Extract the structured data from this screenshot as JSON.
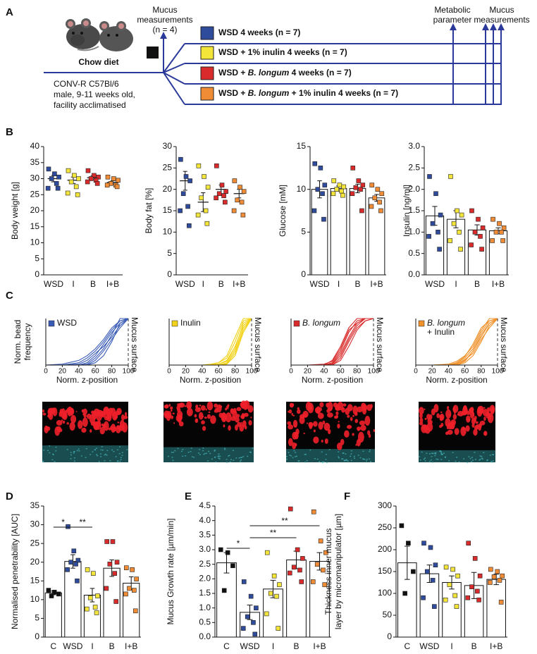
{
  "panel_labels": [
    "A",
    "B",
    "C",
    "D",
    "E",
    "F"
  ],
  "diagram": {
    "start": "Chow diet",
    "mouse_info": [
      "CONV-R C57Bl/6",
      "male, 9-11 weeks old,",
      "facility acclimatised"
    ],
    "early_measure": [
      "Mucus",
      "measurements",
      "(n = 4)"
    ],
    "groups": [
      {
        "color": "#2f4b9c",
        "label": [
          {
            "text": "WSD 4 weeks (n = 7)"
          }
        ]
      },
      {
        "color": "#f3e53a",
        "label": [
          {
            "text": "WSD + 1% inulin 4 weeks (n = 7)"
          }
        ]
      },
      {
        "color": "#d92b2b",
        "label": [
          {
            "text": "WSD + "
          },
          {
            "text": "B. longum",
            "italic": true
          },
          {
            "text": " 4 weeks (n = 7)"
          }
        ]
      },
      {
        "color": "#f08c36",
        "label": [
          {
            "text": "WSD + "
          },
          {
            "text": "B. longum",
            "italic": true
          },
          {
            "text": " + 1% inulin 4 weeks (n = 7)"
          }
        ]
      }
    ],
    "endpoints": [
      [
        "Metabolic",
        "parameter"
      ],
      [
        "Mucus",
        "measurements"
      ]
    ]
  },
  "chart_data": [
    {
      "type": "bar",
      "bars": false,
      "ylabel": "Body weight [g]",
      "categories": [
        "WSD",
        "I",
        "B",
        "I+B"
      ],
      "colors": [
        "#2f4b9c",
        "#f3e53a",
        "#d92b2b",
        "#f08c36"
      ],
      "values": [
        30,
        29.5,
        30.3,
        28.8
      ],
      "errors": [
        1,
        1,
        0.6,
        0.5
      ],
      "points": [
        [
          33,
          31.5,
          30.5,
          30,
          28.5,
          27,
          27
        ],
        [
          32.5,
          31,
          30,
          29,
          27.5,
          25.5,
          25
        ],
        [
          32.5,
          31,
          30.5,
          30,
          29.5,
          29,
          28.5
        ],
        [
          30.5,
          30,
          29.5,
          28.5,
          28,
          28,
          27.5
        ]
      ],
      "ylim": [
        0,
        40
      ],
      "yticks": [
        0,
        5,
        10,
        15,
        20,
        25,
        30,
        35,
        40
      ]
    },
    {
      "type": "bar",
      "bars": false,
      "ylabel": "Body fat [%]",
      "categories": [
        "WSD",
        "I",
        "B",
        "I+B"
      ],
      "colors": [
        "#2f4b9c",
        "#f3e53a",
        "#d92b2b",
        "#f08c36"
      ],
      "values": [
        22,
        17,
        20,
        19
      ],
      "errors": [
        2.2,
        2.2,
        1,
        1
      ],
      "points": [
        [
          27,
          23,
          22,
          19,
          16,
          15,
          11.5
        ],
        [
          25.5,
          23,
          20.5,
          18,
          15,
          14,
          12
        ],
        [
          25.5,
          21,
          19.5,
          19,
          18.5,
          18,
          17
        ],
        [
          22,
          20.5,
          19.5,
          17.5,
          17,
          15,
          14
        ]
      ],
      "ylim": [
        0,
        30
      ],
      "yticks": [
        0,
        5,
        10,
        15,
        20,
        25,
        30
      ]
    },
    {
      "type": "bar",
      "bars": true,
      "ylabel": "Glucose [mM]",
      "categories": [
        "WSD",
        "I",
        "B",
        "I+B"
      ],
      "colors": [
        "#2f4b9c",
        "#f3e53a",
        "#d92b2b",
        "#f08c36"
      ],
      "values": [
        10,
        10.1,
        10.1,
        9
      ],
      "errors": [
        1,
        0.3,
        0.5,
        0.4
      ],
      "points": [
        [
          13,
          12.5,
          10.5,
          10,
          9.5,
          7.5,
          6.5
        ],
        [
          11,
          10.5,
          10.3,
          10,
          9.8,
          9.5,
          9.3
        ],
        [
          12.5,
          11,
          10.5,
          10.2,
          10,
          9.5,
          7.5
        ],
        [
          10.5,
          10,
          9.5,
          9,
          8.5,
          8,
          7.5
        ]
      ],
      "ylim": [
        0,
        15
      ],
      "yticks": [
        0,
        5,
        10,
        15
      ]
    },
    {
      "type": "bar",
      "bars": true,
      "ylabel": "Insulin [ng/ml]",
      "categories": [
        "WSD",
        "I",
        "B",
        "I+B"
      ],
      "colors": [
        "#2f4b9c",
        "#f3e53a",
        "#d92b2b",
        "#f08c36"
      ],
      "values": [
        1.38,
        1.3,
        1.05,
        1.03
      ],
      "errors": [
        0.22,
        0.2,
        0.12,
        0.07
      ],
      "points": [
        [
          2.3,
          1.9,
          1.4,
          1.2,
          1.0,
          0.9,
          0.6
        ],
        [
          2.3,
          1.5,
          1.4,
          1.2,
          1.0,
          0.8,
          0.6
        ],
        [
          1.5,
          1.3,
          1.1,
          1.0,
          0.9,
          0.7,
          0.6
        ],
        [
          1.3,
          1.2,
          1.1,
          1.0,
          1.0,
          0.8,
          0.8
        ]
      ],
      "ylim": [
        0,
        3
      ],
      "yticks": [
        {
          "value": 0,
          "label": "0.0"
        },
        0.5,
        {
          "value": 1,
          "label": "1.0"
        },
        1.5,
        {
          "value": 2,
          "label": "2.0"
        },
        2.5,
        {
          "value": 3,
          "label": "3.0"
        }
      ]
    },
    {
      "type": "line",
      "legend": [
        "WSD"
      ],
      "legend_italic": false,
      "color": "#3a5bb5",
      "ylabel": [
        "Norm. bead",
        "frequency"
      ],
      "xlabel": "Norm. z-position",
      "surface_label": "Mucus surface",
      "x": [
        0,
        20,
        40,
        50,
        60,
        70,
        80,
        90,
        100
      ],
      "series": [
        {
          "values": [
            0,
            0,
            0.05,
            0.15,
            0.3,
            0.5,
            0.75,
            0.95,
            1
          ]
        },
        {
          "values": [
            0,
            0,
            0,
            0.05,
            0.2,
            0.45,
            0.7,
            0.9,
            1
          ]
        },
        {
          "values": [
            0,
            0,
            0.02,
            0.1,
            0.25,
            0.4,
            0.6,
            0.85,
            1
          ]
        },
        {
          "values": [
            0,
            0,
            0,
            0,
            0.1,
            0.3,
            0.55,
            0.8,
            1
          ]
        },
        {
          "values": [
            0,
            0,
            0,
            0.02,
            0.15,
            0.35,
            0.65,
            1,
            1
          ]
        },
        {
          "values": [
            0,
            0,
            0,
            0,
            0.05,
            0.2,
            0.5,
            0.9,
            1
          ]
        },
        {
          "values": [
            0,
            0.02,
            0.1,
            0.2,
            0.35,
            0.55,
            0.8,
            0.95,
            1
          ]
        }
      ],
      "xlim": [
        0,
        100
      ],
      "ylim": [
        0,
        1
      ],
      "xticks": [
        0,
        20,
        40,
        60,
        80,
        100
      ]
    },
    {
      "type": "line",
      "legend": [
        "Inulin"
      ],
      "legend_italic": false,
      "color": "#f2d21a",
      "xlabel": "Norm. z-position",
      "surface_label": "Mucus surface",
      "x": [
        0,
        20,
        40,
        50,
        60,
        70,
        80,
        90,
        100
      ],
      "series": [
        {
          "values": [
            0,
            0,
            0,
            0,
            0.02,
            0.1,
            0.4,
            0.85,
            1
          ]
        },
        {
          "values": [
            0,
            0,
            0,
            0,
            0,
            0.05,
            0.3,
            0.8,
            1
          ]
        },
        {
          "values": [
            0,
            0,
            0,
            0,
            0.05,
            0.15,
            0.5,
            0.95,
            1
          ]
        },
        {
          "values": [
            0,
            0,
            0,
            0,
            0,
            0.02,
            0.2,
            0.7,
            1
          ]
        },
        {
          "values": [
            0,
            0,
            0,
            0.02,
            0.05,
            0.2,
            0.6,
            1,
            1
          ]
        },
        {
          "values": [
            0,
            0,
            0,
            0,
            0.02,
            0.08,
            0.35,
            0.9,
            1
          ]
        },
        {
          "values": [
            0,
            0,
            0,
            0,
            0,
            0.03,
            0.25,
            0.75,
            1
          ]
        }
      ],
      "xlim": [
        0,
        100
      ],
      "ylim": [
        0,
        1
      ],
      "xticks": [
        0,
        20,
        40,
        60,
        80,
        100
      ]
    },
    {
      "type": "line",
      "legend": [
        "B. longum"
      ],
      "legend_italic": true,
      "color": "#d92b2b",
      "xlabel": "Norm. z-position",
      "surface_label": "Mucus surface",
      "x": [
        0,
        20,
        40,
        50,
        60,
        70,
        80,
        90,
        100
      ],
      "series": [
        {
          "values": [
            0,
            0,
            0,
            0.05,
            0.3,
            0.7,
            0.95,
            1,
            1
          ]
        },
        {
          "values": [
            0,
            0,
            0,
            0.1,
            0.4,
            0.8,
            1,
            1,
            1
          ]
        },
        {
          "values": [
            0,
            0,
            0,
            0.02,
            0.2,
            0.55,
            0.85,
            1,
            1
          ]
        },
        {
          "values": [
            0,
            0,
            0,
            0,
            0.15,
            0.5,
            0.8,
            0.95,
            1
          ]
        },
        {
          "values": [
            0,
            0,
            0.02,
            0.08,
            0.35,
            0.75,
            0.9,
            1,
            1
          ]
        },
        {
          "values": [
            0,
            0,
            0,
            0.03,
            0.25,
            0.6,
            0.9,
            1,
            1
          ]
        },
        {
          "values": [
            0,
            0,
            0,
            0,
            0.1,
            0.4,
            0.75,
            0.95,
            1
          ]
        }
      ],
      "xlim": [
        0,
        100
      ],
      "ylim": [
        0,
        1
      ],
      "xticks": [
        0,
        20,
        40,
        60,
        80,
        100
      ]
    },
    {
      "type": "line",
      "legend": [
        "B. longum",
        "+ Inulin"
      ],
      "legend_italic": true,
      "color": "#f0912a",
      "xlabel": "Norm. z-position",
      "surface_label": "Mucus surface",
      "x": [
        0,
        20,
        40,
        50,
        60,
        70,
        80,
        90,
        100
      ],
      "series": [
        {
          "values": [
            0,
            0,
            0,
            0.05,
            0.15,
            0.35,
            0.7,
            0.95,
            1
          ]
        },
        {
          "values": [
            0,
            0,
            0,
            0.02,
            0.1,
            0.3,
            0.6,
            0.9,
            1
          ]
        },
        {
          "values": [
            0,
            0,
            0,
            0,
            0.05,
            0.2,
            0.5,
            0.85,
            1
          ]
        },
        {
          "values": [
            0,
            0,
            0.02,
            0.08,
            0.2,
            0.4,
            0.75,
            1,
            1
          ]
        },
        {
          "values": [
            0,
            0,
            0,
            0.03,
            0.12,
            0.25,
            0.55,
            0.8,
            1
          ]
        },
        {
          "values": [
            0,
            0,
            0,
            0,
            0.08,
            0.3,
            0.65,
            0.9,
            1
          ]
        },
        {
          "values": [
            0,
            0,
            0,
            0.05,
            0.18,
            0.45,
            0.8,
            0.95,
            1
          ]
        }
      ],
      "xlim": [
        0,
        100
      ],
      "ylim": [
        0,
        1
      ],
      "xticks": [
        0,
        20,
        40,
        60,
        80,
        100
      ]
    },
    {
      "type": "bar",
      "bars": true,
      "ylabel": "Normalised penetrability [AUC]",
      "categories": [
        "C",
        "WSD",
        "I",
        "B",
        "I+B"
      ],
      "colors": [
        "#111111",
        "#2f4b9c",
        "#f3e53a",
        "#d92b2b",
        "#f08c36"
      ],
      "values": [
        11.8,
        20.2,
        11.2,
        18.4,
        14.4
      ],
      "errors": [
        0.5,
        1.8,
        1.8,
        2.2,
        1.7
      ],
      "points": [
        [
          12.5,
          12,
          11.5,
          11
        ],
        [
          29.5,
          23,
          20.5,
          20,
          19.5,
          18,
          15
        ],
        [
          18,
          17,
          11,
          10.5,
          8,
          7.5,
          6.5
        ],
        [
          25.5,
          25.5,
          20,
          19.5,
          17,
          13,
          9.5
        ],
        [
          18.5,
          18,
          15.5,
          13,
          12.5,
          11.5,
          7
        ]
      ],
      "significance": [
        {
          "between": [
            0,
            1
          ],
          "label": "*"
        },
        {
          "between": [
            1,
            2
          ],
          "label": "**"
        }
      ],
      "ylim": [
        0,
        35
      ],
      "yticks": [
        0,
        5,
        10,
        15,
        20,
        25,
        30,
        35
      ]
    },
    {
      "type": "bar",
      "bars": true,
      "ylabel": "Mucus Growth rate [µm/min]",
      "categories": [
        "C",
        "WSD",
        "I",
        "B",
        "I+B"
      ],
      "colors": [
        "#111111",
        "#2f4b9c",
        "#f3e53a",
        "#d92b2b",
        "#f08c36"
      ],
      "values": [
        2.55,
        0.85,
        1.65,
        2.65,
        2.6
      ],
      "errors": [
        0.35,
        0.25,
        0.3,
        0.3,
        0.3
      ],
      "points": [
        [
          3.0,
          2.9,
          2.45,
          1.6
        ],
        [
          1.9,
          1.4,
          1.0,
          0.7,
          0.5,
          0.3,
          0.1
        ],
        [
          2.9,
          2.1,
          1.8,
          1.5,
          1.4,
          0.8,
          0.3
        ],
        [
          4.4,
          3.0,
          2.7,
          2.4,
          2.3,
          2.2,
          1.9
        ],
        [
          4.3,
          3.3,
          2.9,
          2.5,
          2.3,
          1.9,
          1.8
        ]
      ],
      "significance": [
        {
          "between": [
            0,
            1
          ],
          "label": "*"
        },
        {
          "between": [
            1,
            4
          ],
          "label": "**"
        },
        {
          "between": [
            1,
            3
          ],
          "label": "**"
        }
      ],
      "ylim": [
        0,
        4.5
      ],
      "yticks": [
        {
          "value": 0,
          "label": "0.0"
        },
        0.5,
        {
          "value": 1,
          "label": "1.0"
        },
        1.5,
        {
          "value": 2,
          "label": "2.0"
        },
        2.5,
        {
          "value": 3,
          "label": "3.0"
        },
        3.5,
        {
          "value": 4,
          "label": "4.0"
        },
        4.5
      ]
    },
    {
      "type": "bar",
      "bars": true,
      "ylabel": [
        "Thickness inner mucus",
        "layer by micromanipulator [µm]"
      ],
      "categories": [
        "C",
        "WSD",
        "I",
        "B",
        "I+B"
      ],
      "colors": [
        "#111111",
        "#2f4b9c",
        "#f3e53a",
        "#d92b2b",
        "#f08c36"
      ],
      "values": [
        170,
        145,
        125,
        118,
        132
      ],
      "errors": [
        38,
        20,
        15,
        30,
        12
      ],
      "points": [
        [
          255,
          215,
          150,
          100
        ],
        [
          215,
          205,
          165,
          150,
          130,
          90,
          70
        ],
        [
          160,
          155,
          140,
          120,
          95,
          85,
          70
        ],
        [
          215,
          180,
          140,
          115,
          105,
          90,
          85
        ],
        [
          155,
          150,
          140,
          138,
          130,
          125,
          80
        ]
      ],
      "ylim": [
        0,
        300
      ],
      "yticks": [
        0,
        50,
        100,
        150,
        200,
        250,
        300
      ]
    }
  ]
}
